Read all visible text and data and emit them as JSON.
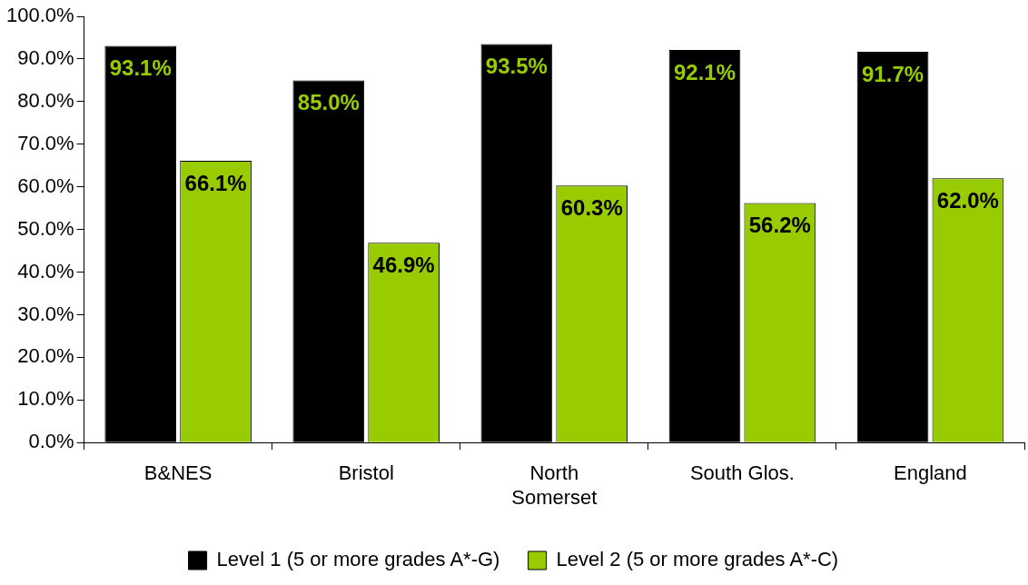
{
  "chart_data": {
    "type": "bar",
    "categories": [
      "B&NES",
      "Bristol",
      "North Somerset",
      "South Glos.",
      "England"
    ],
    "series": [
      {
        "name": "Level 1 (5 or more grades A*-G)",
        "color": "#000000",
        "values": [
          93.1,
          85.0,
          93.5,
          92.1,
          91.7
        ],
        "value_labels": [
          "93.1%",
          "85.0%",
          "93.5%",
          "92.1%",
          "91.7%"
        ]
      },
      {
        "name": "Level 2 (5 or more grades A*-C)",
        "color": "#99cc00",
        "values": [
          66.1,
          46.9,
          60.3,
          56.2,
          62.0
        ],
        "value_labels": [
          "66.1%",
          "46.9%",
          "60.3%",
          "56.2%",
          "62.0%"
        ]
      }
    ],
    "ylim": [
      0,
      100
    ],
    "yticks": [
      {
        "value": 0,
        "label": "0.0%"
      },
      {
        "value": 10,
        "label": "10.0%"
      },
      {
        "value": 20,
        "label": "20.0%"
      },
      {
        "value": 30,
        "label": "30.0%"
      },
      {
        "value": 40,
        "label": "40.0%"
      },
      {
        "value": 50,
        "label": "50.0%"
      },
      {
        "value": 60,
        "label": "60.0%"
      },
      {
        "value": 70,
        "label": "70.0%"
      },
      {
        "value": 80,
        "label": "80.0%"
      },
      {
        "value": 90,
        "label": "90.0%"
      },
      {
        "value": 100,
        "label": "100.0%"
      }
    ],
    "grid": false,
    "legend": "bottom"
  }
}
